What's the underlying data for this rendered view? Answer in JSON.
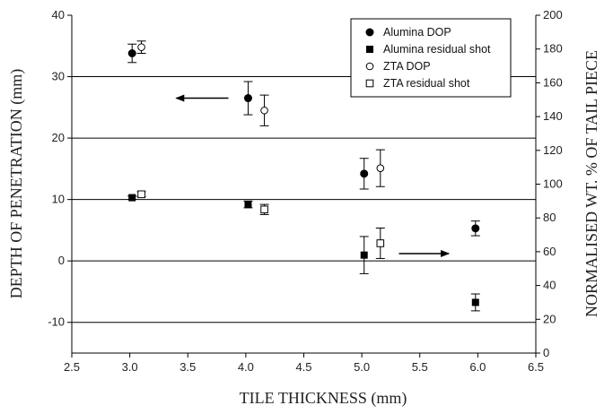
{
  "chart_data": {
    "type": "scatter",
    "title": "",
    "xlabel": "TILE THICKNESS (mm)",
    "ylabel": "DEPTH OF PENETRATION (mm)",
    "y2label": "NORMALISED WT. % OF TAIL PIECE",
    "xlim": [
      2.5,
      6.5
    ],
    "ylim": [
      -15,
      40
    ],
    "y2lim": [
      0,
      200
    ],
    "xticks": [
      2.5,
      3.0,
      3.5,
      4.0,
      4.5,
      5.0,
      5.5,
      6.0,
      6.5
    ],
    "xtick_labels": [
      "2.5",
      "3.0",
      "3.5",
      "4.0",
      "4.5",
      "5.0",
      "5.5",
      "6.0",
      "6.5"
    ],
    "yticks": [
      -10,
      0,
      10,
      20,
      30,
      40
    ],
    "ytick_labels": [
      "-10",
      "0",
      "10",
      "20",
      "30",
      "40"
    ],
    "y2ticks": [
      0,
      20,
      40,
      60,
      80,
      100,
      120,
      140,
      160,
      180,
      200
    ],
    "y2tick_labels": [
      "0",
      "20",
      "40",
      "60",
      "80",
      "100",
      "120",
      "140",
      "160",
      "180",
      "200"
    ],
    "gridlines_y": [
      -10,
      0,
      10,
      20,
      30
    ],
    "grid": "horizontal",
    "legend_position": "top-right",
    "series": [
      {
        "name": "Alumina DOP",
        "marker": "circle-filled",
        "axis": "left",
        "points": [
          {
            "x": 3.02,
            "y": 33.8,
            "err": 1.5
          },
          {
            "x": 4.02,
            "y": 26.5,
            "err": 2.7
          },
          {
            "x": 5.02,
            "y": 14.2,
            "err": 2.5
          },
          {
            "x": 5.98,
            "y": 5.3,
            "err": 1.2
          }
        ]
      },
      {
        "name": "Alumina residual shot",
        "marker": "square-filled",
        "axis": "right",
        "points": [
          {
            "x": 3.02,
            "y": 92,
            "err": 1
          },
          {
            "x": 4.02,
            "y": 88,
            "err": 2
          },
          {
            "x": 5.02,
            "y": 58,
            "err": 11
          },
          {
            "x": 5.98,
            "y": 30,
            "err": 5
          }
        ]
      },
      {
        "name": "ZTA DOP",
        "marker": "circle-open",
        "axis": "left",
        "points": [
          {
            "x": 3.1,
            "y": 34.8,
            "err": 1.0
          },
          {
            "x": 4.16,
            "y": 24.5,
            "err": 2.5
          },
          {
            "x": 5.16,
            "y": 15.1,
            "err": 3.0
          }
        ]
      },
      {
        "name": "ZTA residual shot",
        "marker": "square-open",
        "axis": "right",
        "points": [
          {
            "x": 3.1,
            "y": 94,
            "err": 1.5
          },
          {
            "x": 4.16,
            "y": 85,
            "err": 3
          },
          {
            "x": 5.16,
            "y": 65,
            "err": 9
          }
        ]
      }
    ],
    "annotations": [
      {
        "type": "arrow",
        "direction": "left",
        "meaning": "series on left axis",
        "from": {
          "x": 3.85,
          "y": 26.5
        },
        "to": {
          "x": 3.4,
          "y": 26.5
        }
      },
      {
        "type": "arrow",
        "direction": "right",
        "meaning": "series on right axis",
        "from": {
          "x": 5.32,
          "y": 1.2
        },
        "to": {
          "x": 5.75,
          "y": 1.2
        }
      }
    ],
    "colors": {
      "marker": "#000000",
      "grid": "#000000",
      "axis": "#000000"
    }
  }
}
